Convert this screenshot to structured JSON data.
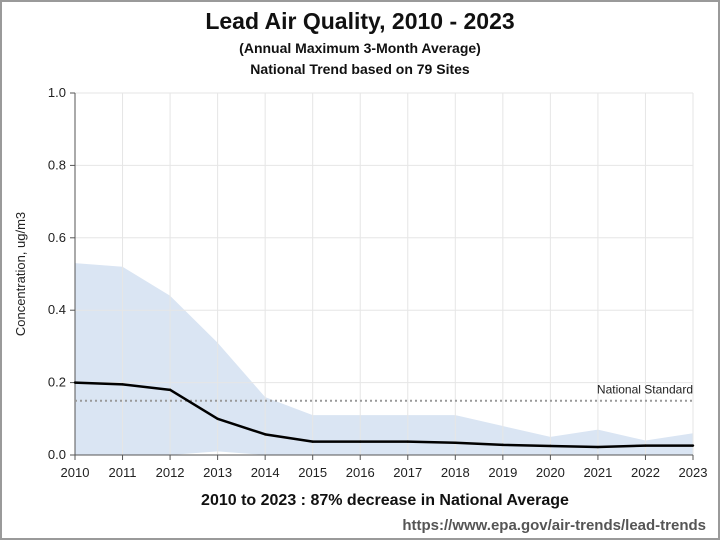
{
  "chart_data": {
    "type": "line",
    "title": "Lead Air Quality, 2010 - 2023",
    "subtitle_lines": [
      "(Annual Maximum 3-Month Average)",
      "National Trend based on 79 Sites"
    ],
    "xlabel": "",
    "ylabel": "Concentration, ug/m3",
    "x": [
      2010,
      2011,
      2012,
      2013,
      2014,
      2015,
      2016,
      2017,
      2018,
      2019,
      2020,
      2021,
      2022,
      2023
    ],
    "xlim": [
      2010,
      2023
    ],
    "ylim": [
      0,
      1.0
    ],
    "yticks": [
      "0.0",
      "0.2",
      "0.4",
      "0.6",
      "0.8",
      "1.0"
    ],
    "series": [
      {
        "values": [
          0.2,
          0.195,
          0.18,
          0.1,
          0.057,
          0.037,
          0.037,
          0.037,
          0.034,
          0.028,
          0.025,
          0.022,
          0.026,
          0.026
        ],
        "color": "#000000"
      }
    ],
    "band": {
      "upper": [
        0.53,
        0.52,
        0.44,
        0.31,
        0.16,
        0.11,
        0.11,
        0.11,
        0.11,
        0.08,
        0.05,
        0.07,
        0.04,
        0.06
      ],
      "lower": [
        0,
        0,
        0,
        0.01,
        0,
        0,
        0,
        0,
        0,
        0,
        0,
        0,
        0,
        0
      ],
      "color": "#dae5f3"
    },
    "reference_line": {
      "label": "National Standard",
      "value": 0.15,
      "color": "#999999"
    },
    "grid": true,
    "annotation": "2010 to 2023 :  87% decrease in National Average",
    "source": "https://www.epa.gov/air-trends/lead-trends"
  }
}
